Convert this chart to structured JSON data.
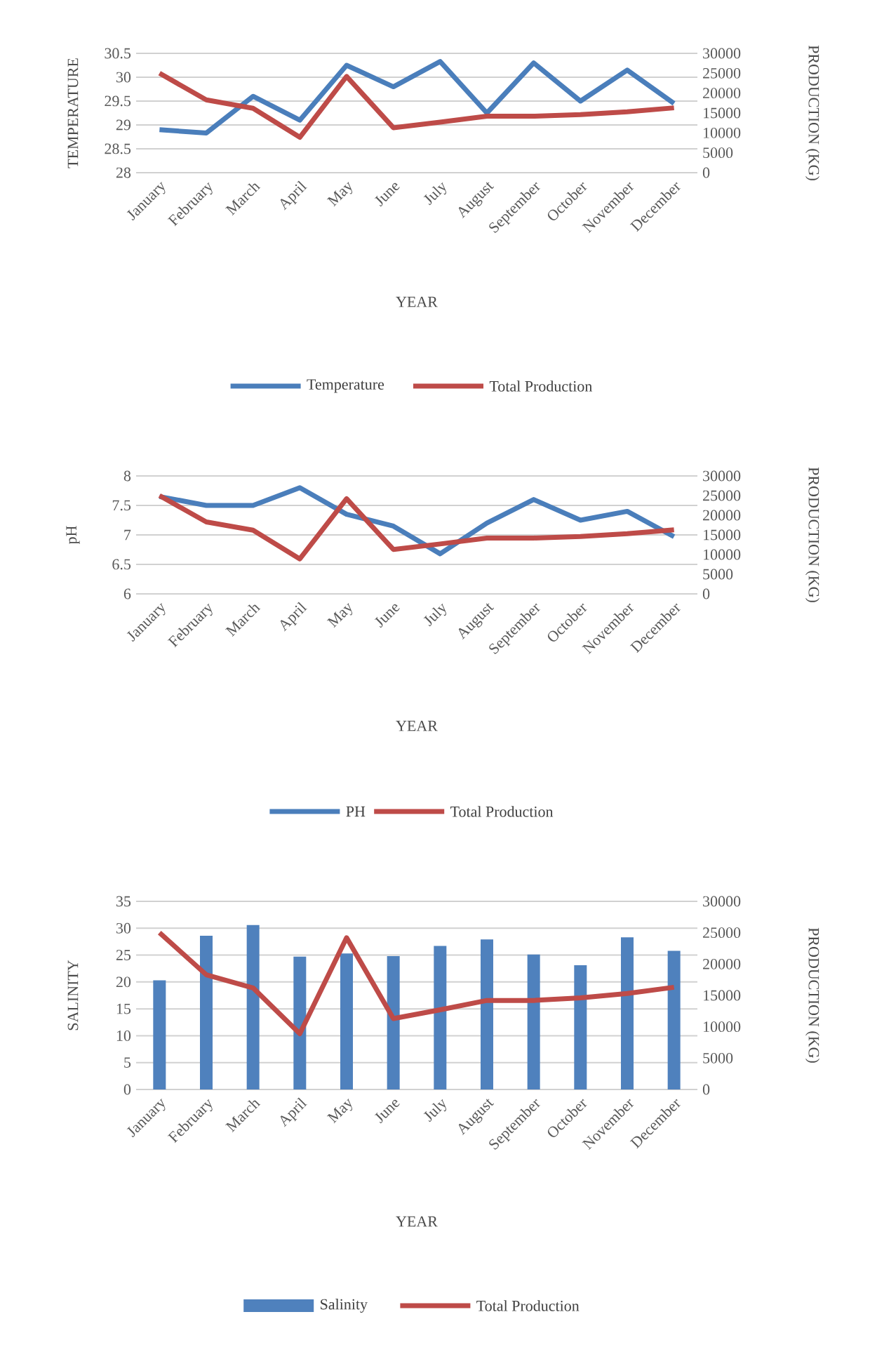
{
  "chart_data": [
    {
      "type": "line",
      "xlabel": "YEAR",
      "ylabel": "TEMPERATURE",
      "y2label": "PRODUCTION (KG)",
      "categories": [
        "January",
        "February",
        "March",
        "April",
        "May",
        "June",
        "July",
        "August",
        "September",
        "October",
        "November",
        "December"
      ],
      "ylim": [
        28,
        30.5
      ],
      "yticks": [
        28,
        28.5,
        29,
        29.5,
        30,
        30.5
      ],
      "y2lim": [
        0,
        30000
      ],
      "y2ticks": [
        0,
        5000,
        10000,
        15000,
        20000,
        25000,
        30000
      ],
      "grid": "y",
      "legend": "bottom",
      "series": [
        {
          "name": "Temperature",
          "color": "#4a7ebb",
          "values": [
            28.9,
            28.83,
            29.6,
            29.1,
            30.25,
            29.8,
            30.33,
            29.25,
            30.3,
            29.5,
            30.15,
            29.45
          ]
        },
        {
          "name": "Total Production",
          "color": "#be4b48",
          "axis": "y2",
          "values": [
            25000,
            18300,
            16200,
            8900,
            24200,
            11300,
            12700,
            14200,
            14200,
            14600,
            15300,
            16300
          ]
        }
      ]
    },
    {
      "type": "line",
      "xlabel": "YEAR",
      "ylabel": "pH",
      "y2label": "PRODUCTION (KG)",
      "categories": [
        "January",
        "February",
        "March",
        "April",
        "May",
        "June",
        "July",
        "August",
        "September",
        "October",
        "November",
        "December"
      ],
      "ylim": [
        6,
        8
      ],
      "yticks": [
        6,
        6.5,
        7,
        7.5,
        8
      ],
      "y2lim": [
        0,
        30000
      ],
      "y2ticks": [
        0,
        5000,
        10000,
        15000,
        20000,
        25000,
        30000
      ],
      "grid": "y",
      "legend": "bottom",
      "series": [
        {
          "name": "PH",
          "color": "#4a7ebb",
          "values": [
            7.65,
            7.5,
            7.5,
            7.8,
            7.35,
            7.15,
            6.68,
            7.2,
            7.6,
            7.25,
            7.4,
            6.97
          ]
        },
        {
          "name": "Total Production",
          "color": "#be4b48",
          "axis": "y2",
          "values": [
            25000,
            18300,
            16200,
            8900,
            24200,
            11300,
            12700,
            14200,
            14200,
            14600,
            15300,
            16300
          ]
        }
      ]
    },
    {
      "type": "bar",
      "xlabel": "YEAR",
      "ylabel": "SALINITY",
      "y2label": "PRODUCTION (KG)",
      "categories": [
        "January",
        "February",
        "March",
        "April",
        "May",
        "June",
        "July",
        "August",
        "September",
        "October",
        "November",
        "December"
      ],
      "ylim": [
        0,
        35
      ],
      "yticks": [
        0,
        5,
        10,
        15,
        20,
        25,
        30,
        35
      ],
      "y2lim": [
        0,
        30000
      ],
      "y2ticks": [
        0,
        5000,
        10000,
        15000,
        20000,
        25000,
        30000
      ],
      "grid": "y",
      "legend": "bottom",
      "series": [
        {
          "name": "Salinity",
          "color": "#4f81bd",
          "values": [
            20.3,
            28.6,
            30.6,
            24.7,
            25.3,
            24.8,
            26.7,
            27.9,
            25.1,
            23.1,
            28.3,
            25.8
          ]
        },
        {
          "name": "Total Production",
          "type": "line",
          "color": "#be4b48",
          "axis": "y2",
          "values": [
            25000,
            18300,
            16200,
            8900,
            24200,
            11300,
            12700,
            14200,
            14200,
            14600,
            15300,
            16300
          ]
        }
      ]
    }
  ]
}
